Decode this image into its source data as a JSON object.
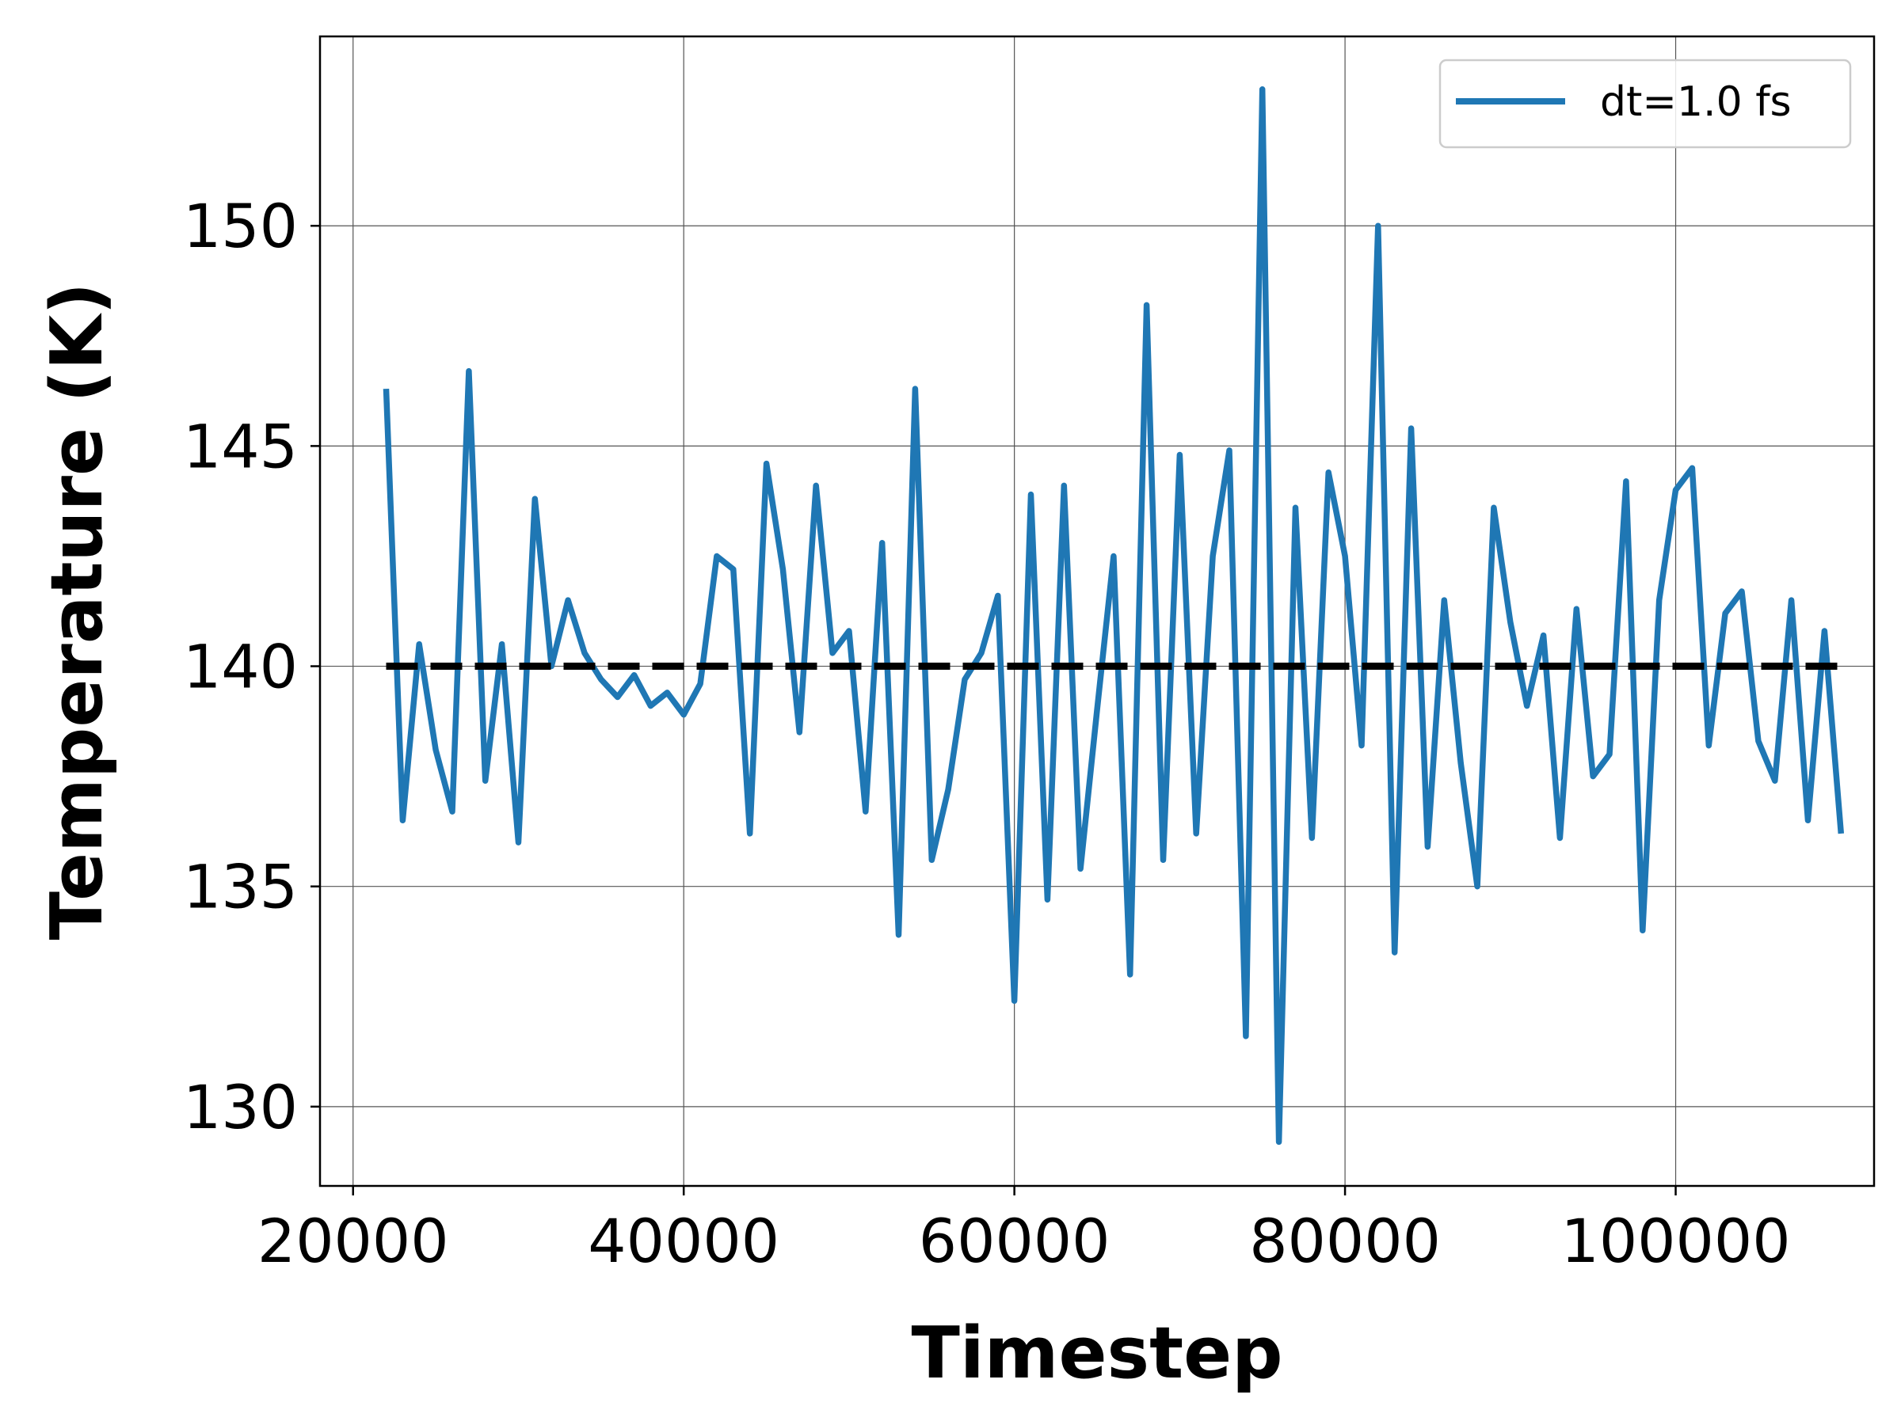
{
  "chart_data": {
    "type": "line",
    "title": "",
    "xlabel": "Timestep",
    "ylabel": "Temperature (K)",
    "xlim": [
      18000,
      112000
    ],
    "ylim": [
      128.2,
      154.3
    ],
    "xticks": [
      20000,
      40000,
      60000,
      80000,
      100000
    ],
    "xtick_labels": [
      "20000",
      "40000",
      "60000",
      "80000",
      "100000"
    ],
    "yticks": [
      130,
      135,
      140,
      145,
      150
    ],
    "ytick_labels": [
      "130",
      "135",
      "140",
      "145",
      "150"
    ],
    "grid": true,
    "legend_position": "top-right",
    "series": [
      {
        "name": "dt=1.0 fs",
        "color": "#1f77b4",
        "style": "solid",
        "x": [
          22000,
          23000,
          24000,
          25000,
          26000,
          27000,
          28000,
          29000,
          30000,
          31000,
          32000,
          33000,
          34000,
          35000,
          36000,
          37000,
          38000,
          39000,
          40000,
          41000,
          42000,
          43000,
          44000,
          45000,
          46000,
          47000,
          48000,
          49000,
          50000,
          51000,
          52000,
          53000,
          54000,
          55000,
          56000,
          57000,
          58000,
          59000,
          60000,
          61000,
          62000,
          63000,
          64000,
          65000,
          66000,
          67000,
          68000,
          69000,
          70000,
          71000,
          72000,
          73000,
          74000,
          75000,
          76000,
          77000,
          78000,
          79000,
          80000,
          81000,
          82000,
          83000,
          84000,
          85000,
          86000,
          87000,
          88000,
          89000,
          90000,
          91000,
          92000,
          93000,
          94000,
          95000,
          96000,
          97000,
          98000,
          99000,
          100000,
          101000,
          102000,
          103000,
          104000,
          105000,
          106000,
          107000,
          108000,
          109000,
          110000
        ],
        "y": [
          146.3,
          136.5,
          140.5,
          138.1,
          136.7,
          146.7,
          137.4,
          140.5,
          136.0,
          143.8,
          140.0,
          141.5,
          140.3,
          139.7,
          139.3,
          139.8,
          139.1,
          139.4,
          138.9,
          139.6,
          142.5,
          142.2,
          136.2,
          144.6,
          142.2,
          138.5,
          144.1,
          140.3,
          140.8,
          136.7,
          142.8,
          133.9,
          146.3,
          135.6,
          137.2,
          139.7,
          140.3,
          141.6,
          132.4,
          143.9,
          134.7,
          144.1,
          135.4,
          139.0,
          142.5,
          133.0,
          148.2,
          135.6,
          144.8,
          136.2,
          142.5,
          144.9,
          131.6,
          153.1,
          129.2,
          143.6,
          136.1,
          144.4,
          142.5,
          138.2,
          150.0,
          133.5,
          145.4,
          135.9,
          141.5,
          137.8,
          135.0,
          143.6,
          141.0,
          139.1,
          140.7,
          136.1,
          141.3,
          137.5,
          138.0,
          144.2,
          134.0,
          141.5,
          144.0,
          144.5,
          138.2,
          141.2,
          141.7,
          138.3,
          137.4,
          141.5,
          136.5,
          140.8,
          136.2
        ]
      },
      {
        "color": "#000000",
        "style": "dashed",
        "x": [
          22000,
          110000
        ],
        "y": [
          140,
          140
        ]
      }
    ]
  }
}
